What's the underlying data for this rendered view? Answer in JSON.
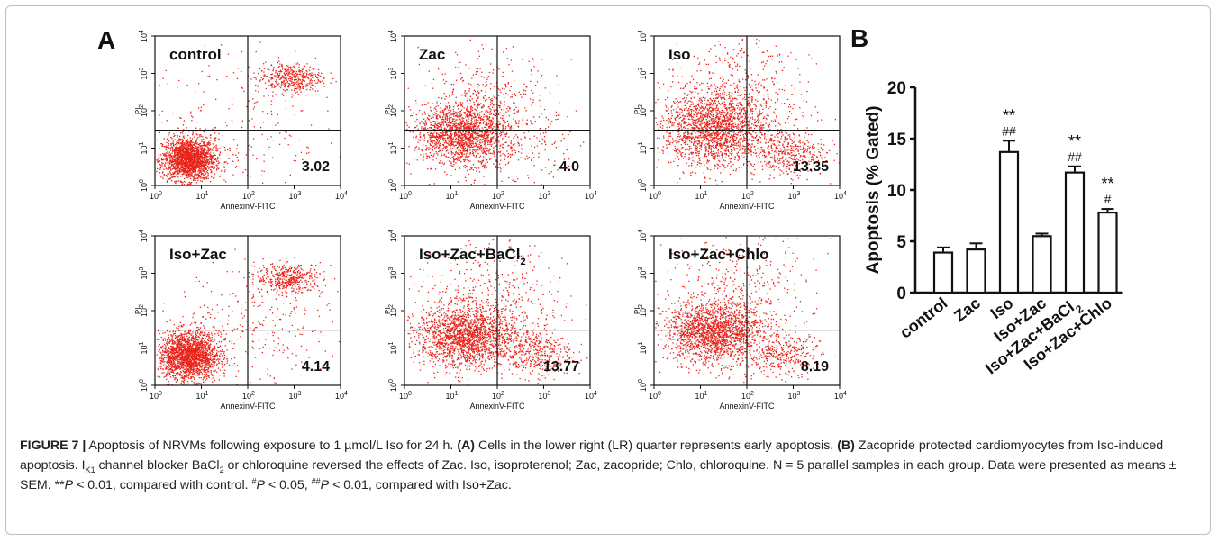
{
  "panel_a": {
    "label": "A",
    "x_axis_label": "AnnexinV-FITC",
    "y_axis_label": "PI",
    "tick_base": "10",
    "tick_exponents": [
      "0",
      "1",
      "2",
      "3",
      "4"
    ],
    "dot_color": "#e8231a",
    "plots": [
      {
        "name": "control",
        "lr_value": "3.02",
        "y_label": "PI"
      },
      {
        "name": "Zac",
        "lr_value": "4.0",
        "y_label": "PI"
      },
      {
        "name": "Iso",
        "lr_value": "13.35",
        "y_label": "PI"
      },
      {
        "name": "Iso+Zac",
        "lr_value": "4.14",
        "y_label": "PI"
      },
      {
        "name": "Iso+Zac+BaCl",
        "name_sub": "2",
        "lr_value": "13.77",
        "y_label": "PI"
      },
      {
        "name": "Iso+Zac+Chlo",
        "lr_value": "8.19",
        "y_label": "PI"
      }
    ]
  },
  "panel_b": {
    "label": "B"
  },
  "chart_data": {
    "type": "bar",
    "ylabel": "Apoptosis (% Gated)",
    "xlabel": "",
    "ylim": [
      0,
      20
    ],
    "yticks": [
      "0",
      "5",
      "10",
      "15",
      "20"
    ],
    "categories": [
      "control",
      "Zac",
      "Iso",
      "Iso+Zac",
      "Iso+Zac+BaCl",
      "Iso+Zac+Chlo"
    ],
    "category_subscripts": [
      "",
      "",
      "",
      "",
      "2",
      ""
    ],
    "values": [
      3.9,
      4.2,
      13.7,
      5.5,
      11.7,
      7.8
    ],
    "errors": [
      0.5,
      0.6,
      1.1,
      0.25,
      0.6,
      0.35
    ],
    "annotations": [
      {
        "index": 2,
        "top": "**",
        "bottom": "##"
      },
      {
        "index": 4,
        "top": "**",
        "bottom": "##"
      },
      {
        "index": 5,
        "top": "**",
        "bottom": "#"
      }
    ]
  },
  "caption": {
    "figure_label": "FIGURE 7 |",
    "title": "Apoptosis of NRVMs following exposure to 1 µmol/L Iso for 24 h.",
    "part_a_label": "(A)",
    "part_a_text": "Cells in the lower right (LR) quarter represents early apoptosis.",
    "part_b_label": "(B)",
    "part_b_text_1": "Zacopride protected cardiomyocytes from Iso-induced apoptosis. I",
    "part_b_ik_sub": "K1",
    "part_b_text_2": " channel blocker BaCl",
    "part_b_bacl_sub": "2",
    "part_b_text_3": " or chloroquine reversed the effects of Zac. Iso, isoproterenol; Zac, zacopride; Chlo, chloroquine. N = 5 parallel samples in each group. Data were presented as means ± SEM. **",
    "p_symbol_1": "P",
    "text_4": " < 0.01, compared with control. ",
    "hash_1": "#",
    "p_symbol_2": "P",
    "text_5": " < 0.05, ",
    "hash_2": "##",
    "p_symbol_3": "P",
    "text_6": " < 0.01, compared with Iso+Zac."
  }
}
